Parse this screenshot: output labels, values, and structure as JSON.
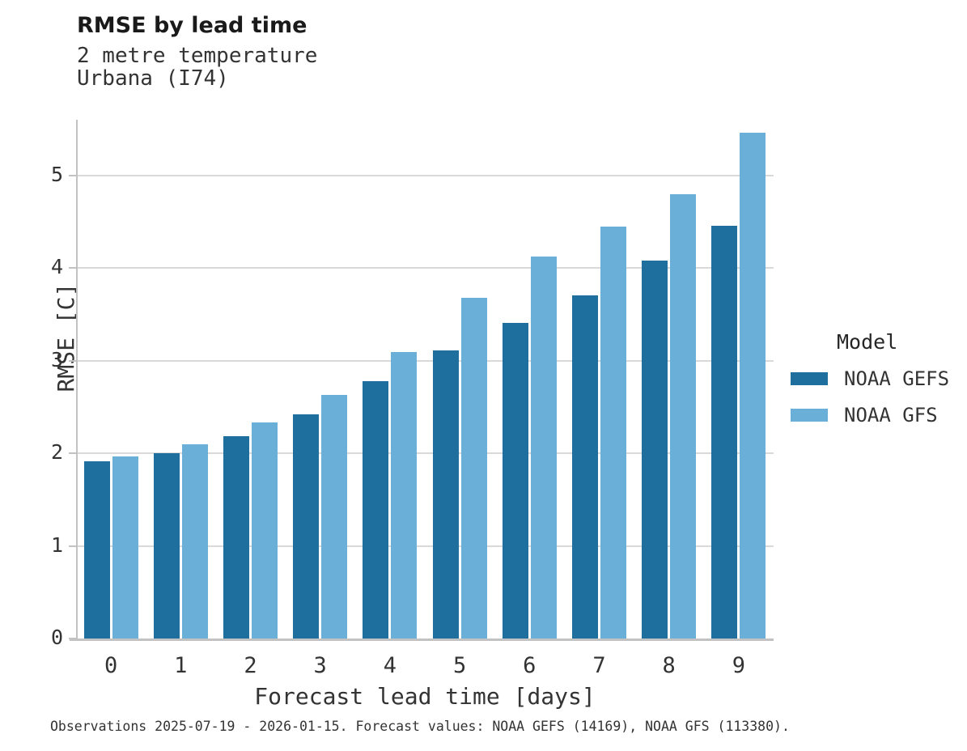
{
  "header": {
    "title": "RMSE by lead time",
    "subtitle_line1": "2 metre temperature",
    "subtitle_line2": "Urbana (I74)"
  },
  "caption": "Observations 2025-07-19 - 2026-01-15. Forecast values: NOAA GEFS (14169), NOAA GFS (113380).",
  "legend": {
    "title": "Model",
    "entries": [
      {
        "label": "NOAA GEFS",
        "color": "#1F6F9E"
      },
      {
        "label": "NOAA GFS",
        "color": "#69AFD7"
      }
    ]
  },
  "colors": {
    "gefs_bar": "#1F6F9E",
    "gfs_bar": "#69AFD7",
    "gridline": "#D9D9D9",
    "axis_line": "#C2C2C2",
    "title_text": "#1a1a1a",
    "body_text": "#333333",
    "background": "#FFFFFF"
  },
  "chart_data": {
    "type": "bar",
    "title": "RMSE by lead time",
    "subtitle": [
      "2 metre temperature",
      "Urbana (I74)"
    ],
    "categories": [
      "0",
      "1",
      "2",
      "3",
      "4",
      "5",
      "6",
      "7",
      "8",
      "9"
    ],
    "series": [
      {
        "name": "NOAA GEFS",
        "color": "#1F6F9E",
        "values": [
          1.91,
          2.0,
          2.18,
          2.42,
          2.78,
          3.11,
          3.41,
          3.7,
          4.08,
          4.46
        ]
      },
      {
        "name": "NOAA GFS",
        "color": "#69AFD7",
        "values": [
          1.97,
          2.1,
          2.33,
          2.63,
          3.09,
          3.68,
          4.12,
          4.45,
          4.8,
          5.46
        ]
      }
    ],
    "xlabel": "Forecast lead time [days]",
    "ylabel": "RMSE [C]",
    "ylim": [
      0,
      5.6
    ],
    "yticks": [
      0,
      1,
      2,
      3,
      4,
      5
    ],
    "grid": true,
    "legend_title": "Model",
    "legend_position": "right"
  }
}
